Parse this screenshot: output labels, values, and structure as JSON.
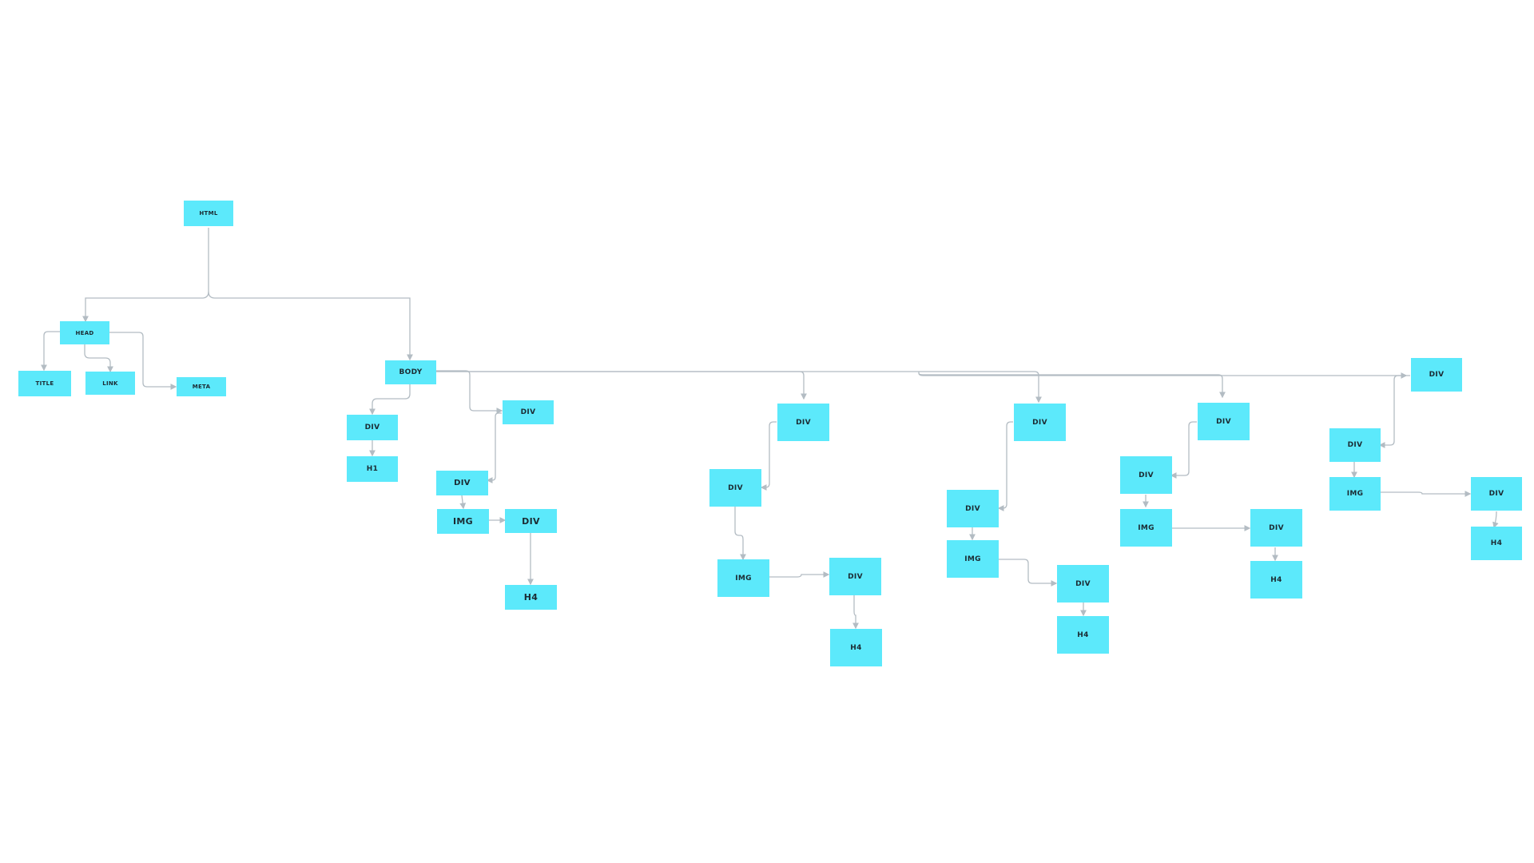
{
  "diagram": {
    "nodes": [
      {
        "id": "n-html",
        "label": "HTML"
      },
      {
        "id": "n-head",
        "label": "HEAD"
      },
      {
        "id": "n-title",
        "label": "TITLE"
      },
      {
        "id": "n-link",
        "label": "LINK"
      },
      {
        "id": "n-meta",
        "label": "META"
      },
      {
        "id": "n-body",
        "label": "BODY"
      },
      {
        "id": "n-div1",
        "label": "DIV"
      },
      {
        "id": "n-h1",
        "label": "H1"
      },
      {
        "id": "n-div2",
        "label": "DIV"
      },
      {
        "id": "n-div2a",
        "label": "DIV"
      },
      {
        "id": "n-img2",
        "label": "IMG"
      },
      {
        "id": "n-div2b",
        "label": "DIV"
      },
      {
        "id": "n-h4-2",
        "label": "H4"
      },
      {
        "id": "n-div3",
        "label": "DIV"
      },
      {
        "id": "n-div3a",
        "label": "DIV"
      },
      {
        "id": "n-img3",
        "label": "IMG"
      },
      {
        "id": "n-div3b",
        "label": "DIV"
      },
      {
        "id": "n-h4-3",
        "label": "H4"
      },
      {
        "id": "n-div4",
        "label": "DIV"
      },
      {
        "id": "n-div4a",
        "label": "DIV"
      },
      {
        "id": "n-img4",
        "label": "IMG"
      },
      {
        "id": "n-div4b",
        "label": "DIV"
      },
      {
        "id": "n-h4-4",
        "label": "H4"
      },
      {
        "id": "n-div5",
        "label": "DIV"
      },
      {
        "id": "n-div5a",
        "label": "DIV"
      },
      {
        "id": "n-img5",
        "label": "IMG"
      },
      {
        "id": "n-div5b",
        "label": "DIV"
      },
      {
        "id": "n-h4-5",
        "label": "H4"
      },
      {
        "id": "n-div6",
        "label": "DIV"
      },
      {
        "id": "n-div6a",
        "label": "DIV"
      },
      {
        "id": "n-img6",
        "label": "IMG"
      },
      {
        "id": "n-div6b",
        "label": "DIV"
      },
      {
        "id": "n-h4-6",
        "label": "H4"
      }
    ],
    "edges": [
      {
        "from": "n-html",
        "to": "n-head"
      },
      {
        "from": "n-html",
        "to": "n-body"
      },
      {
        "from": "n-head",
        "to": "n-title"
      },
      {
        "from": "n-head",
        "to": "n-link"
      },
      {
        "from": "n-head",
        "to": "n-meta"
      },
      {
        "from": "n-body",
        "to": "n-div1"
      },
      {
        "from": "n-div1",
        "to": "n-h1"
      },
      {
        "from": "n-body",
        "to": "n-div2"
      },
      {
        "from": "n-div2",
        "to": "n-div2a"
      },
      {
        "from": "n-div2a",
        "to": "n-img2"
      },
      {
        "from": "n-div2b",
        "to": "n-h4-2"
      },
      {
        "from": "n-body",
        "to": "n-div3"
      },
      {
        "from": "n-div3",
        "to": "n-div3a"
      },
      {
        "from": "n-div3a",
        "to": "n-img3"
      },
      {
        "from": "n-img3",
        "to": "n-div3b"
      },
      {
        "from": "n-div3b",
        "to": "n-h4-3"
      },
      {
        "from": "n-body",
        "to": "n-div4"
      },
      {
        "from": "n-div4",
        "to": "n-div4a"
      },
      {
        "from": "n-div4a",
        "to": "n-img4"
      },
      {
        "from": "n-img4",
        "to": "n-div4b"
      },
      {
        "from": "n-div4b",
        "to": "n-h4-4"
      },
      {
        "from": "n-body",
        "to": "n-div5"
      },
      {
        "from": "n-div5",
        "to": "n-div5a"
      },
      {
        "from": "n-div5a",
        "to": "n-img5"
      },
      {
        "from": "n-img5",
        "to": "n-div5b"
      },
      {
        "from": "n-div5b",
        "to": "n-h4-5"
      },
      {
        "from": "n-body",
        "to": "n-div6"
      },
      {
        "from": "n-div6",
        "to": "n-div6a"
      },
      {
        "from": "n-div6a",
        "to": "n-img6"
      },
      {
        "from": "n-img6",
        "to": "n-div6b"
      },
      {
        "from": "n-div6b",
        "to": "n-h4-6"
      }
    ],
    "colors": {
      "node_fill": "#5ce9fb",
      "edge": "#b3bcc3",
      "text": "#1b2b33"
    }
  }
}
